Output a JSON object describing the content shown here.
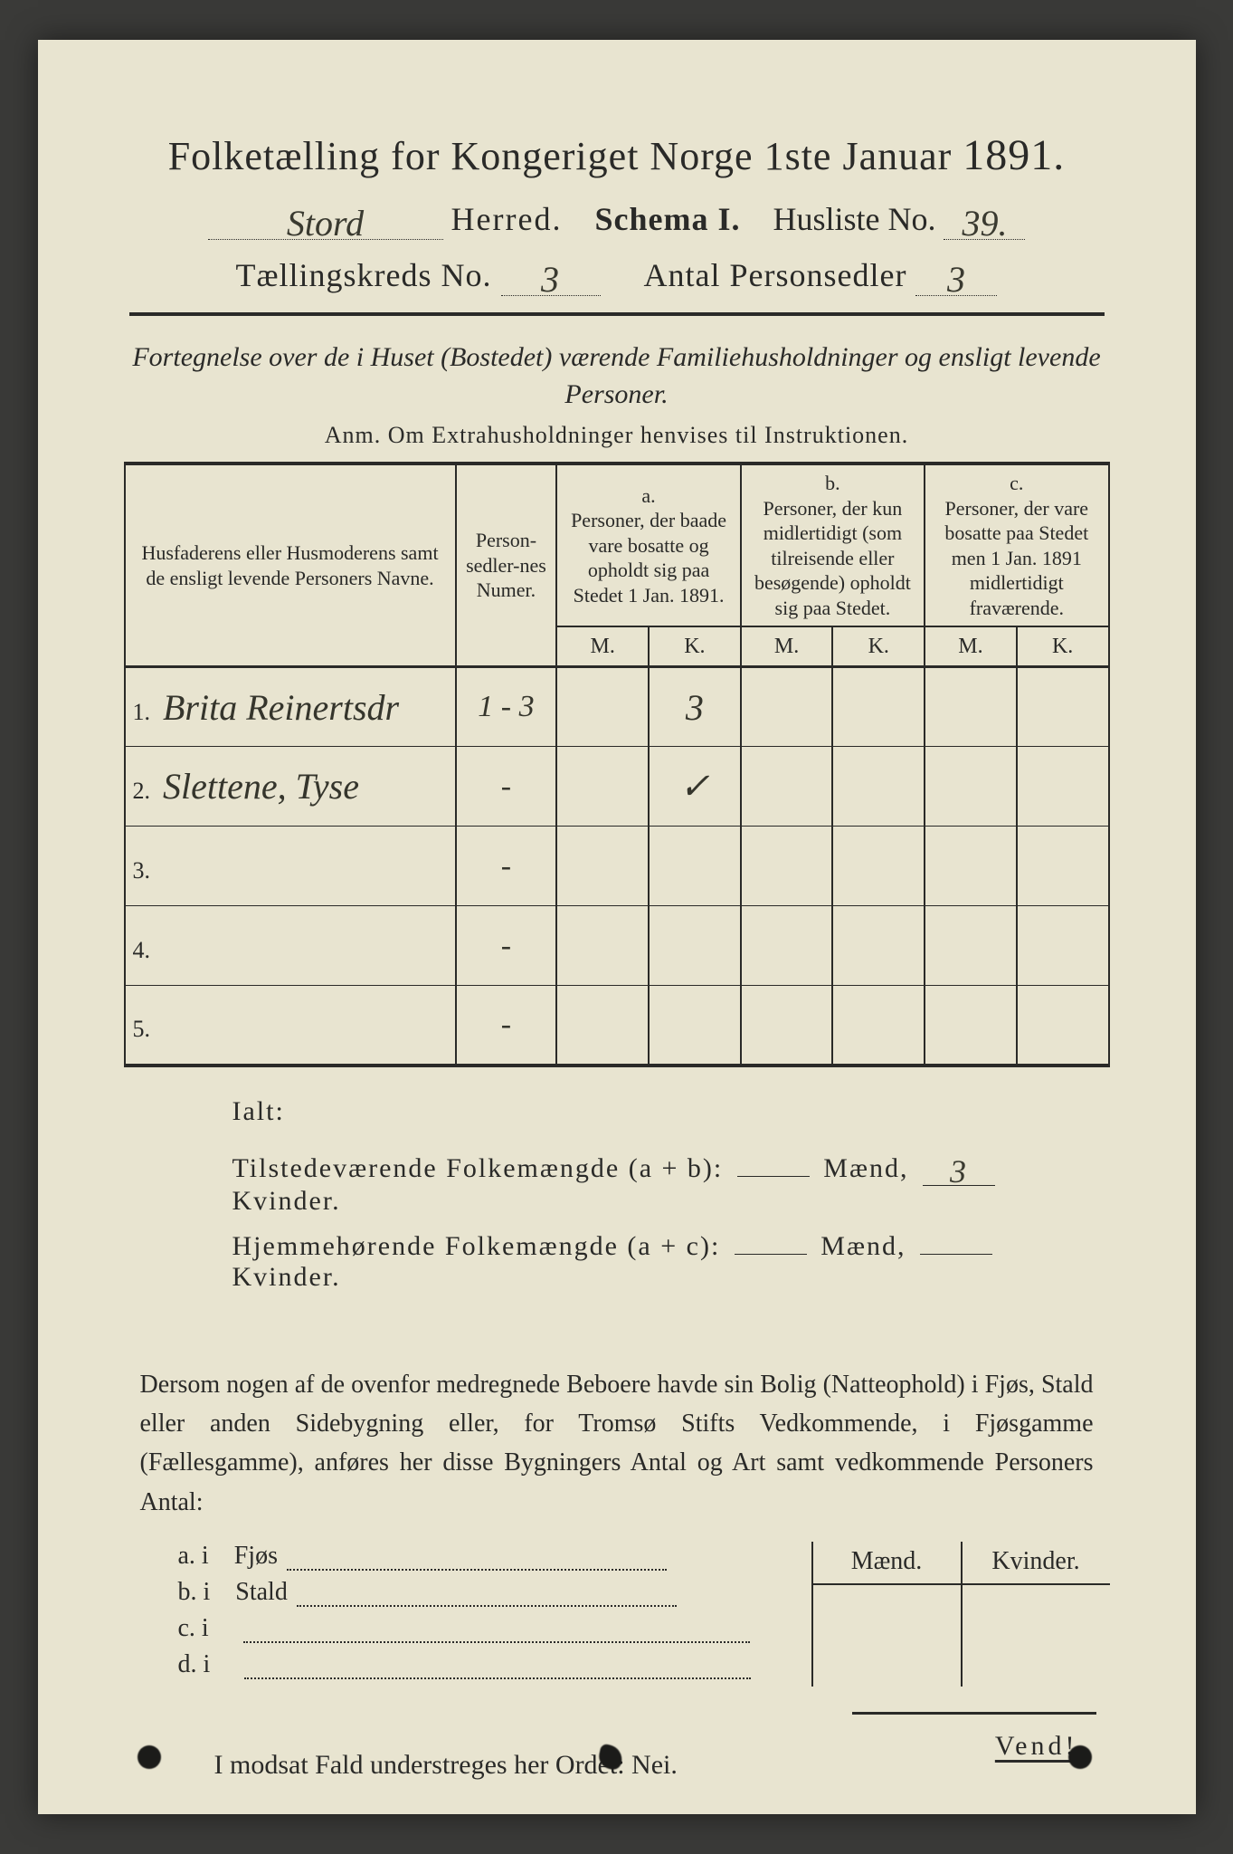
{
  "colors": {
    "paper": "#e8e4d0",
    "ink": "#2a2a28",
    "frame": "#3a3a38",
    "handwriting": "#35352c"
  },
  "header": {
    "title_pre": "Folketælling for Kongeriget Norge 1ste Januar",
    "year": "1891.",
    "herred_value": "Stord",
    "herred_label": "Herred.",
    "schema_label": "Schema I.",
    "husliste_label": "Husliste No.",
    "husliste_value": "39.",
    "kreds_label": "Tællingskreds No.",
    "kreds_value": "3",
    "antal_label": "Antal Personsedler",
    "antal_value": "3"
  },
  "fortegnelse": {
    "line": "Fortegnelse over de i Huset (Bostedet) værende Familiehusholdninger og ensligt levende Personer.",
    "anm": "Anm. Om Extrahusholdninger henvises til Instruktionen."
  },
  "table": {
    "head": {
      "name": "Husfaderens eller Husmoderens samt de ensligt levende Personers Navne.",
      "num": "Person-sedler-nes Numer.",
      "a_label": "a.",
      "a": "Personer, der baade vare bosatte og opholdt sig paa Stedet 1 Jan. 1891.",
      "b_label": "b.",
      "b": "Personer, der kun midlertidigt (som tilreisende eller besøgende) opholdt sig paa Stedet.",
      "c_label": "c.",
      "c": "Personer, der vare bosatte paa Stedet men 1 Jan. 1891 midlertidigt fraværende.",
      "m": "M.",
      "k": "K."
    },
    "rows": [
      {
        "n": "1.",
        "name": "Brita Reinertsdr",
        "num": "1 - 3",
        "a_m": "",
        "a_k": "3",
        "b_m": "",
        "b_k": "",
        "c_m": "",
        "c_k": ""
      },
      {
        "n": "2.",
        "name": "Slettene, Tyse",
        "num": "-",
        "a_m": "",
        "a_k": "✓",
        "b_m": "",
        "b_k": "",
        "c_m": "",
        "c_k": ""
      },
      {
        "n": "3.",
        "name": "",
        "num": "-",
        "a_m": "",
        "a_k": "",
        "b_m": "",
        "b_k": "",
        "c_m": "",
        "c_k": ""
      },
      {
        "n": "4.",
        "name": "",
        "num": "-",
        "a_m": "",
        "a_k": "",
        "b_m": "",
        "b_k": "",
        "c_m": "",
        "c_k": ""
      },
      {
        "n": "5.",
        "name": "",
        "num": "-",
        "a_m": "",
        "a_k": "",
        "b_m": "",
        "b_k": "",
        "c_m": "",
        "c_k": ""
      }
    ]
  },
  "ialt": {
    "label": "Ialt:",
    "row1_label": "Tilstedeværende Folkemængde (a + b):",
    "row2_label": "Hjemmehørende Folkemængde (a + c):",
    "maend": "Mænd,",
    "kvinder": "Kvinder.",
    "r1_m": "",
    "r1_k": "3",
    "r2_m": "",
    "r2_k": ""
  },
  "dersom": "Dersom nogen af de ovenfor medregnede Beboere havde sin Bolig (Natteophold) i Fjøs, Stald eller anden Sidebygning eller, for Tromsø Stifts Vedkommende, i Fjøsgamme (Fællesgamme), anføres her disse Bygningers Antal og Art samt vedkommende Personers Antal:",
  "bygninger": {
    "head_m": "Mænd.",
    "head_k": "Kvinder.",
    "rows": [
      {
        "l": "a.  i",
        "t": "Fjøs"
      },
      {
        "l": "b.  i",
        "t": "Stald"
      },
      {
        "l": "c.  i",
        "t": ""
      },
      {
        "l": "d.  i",
        "t": ""
      }
    ]
  },
  "modsat": "I modsat Fald understreges her Ordet: Nei.",
  "footer": "Vend!"
}
